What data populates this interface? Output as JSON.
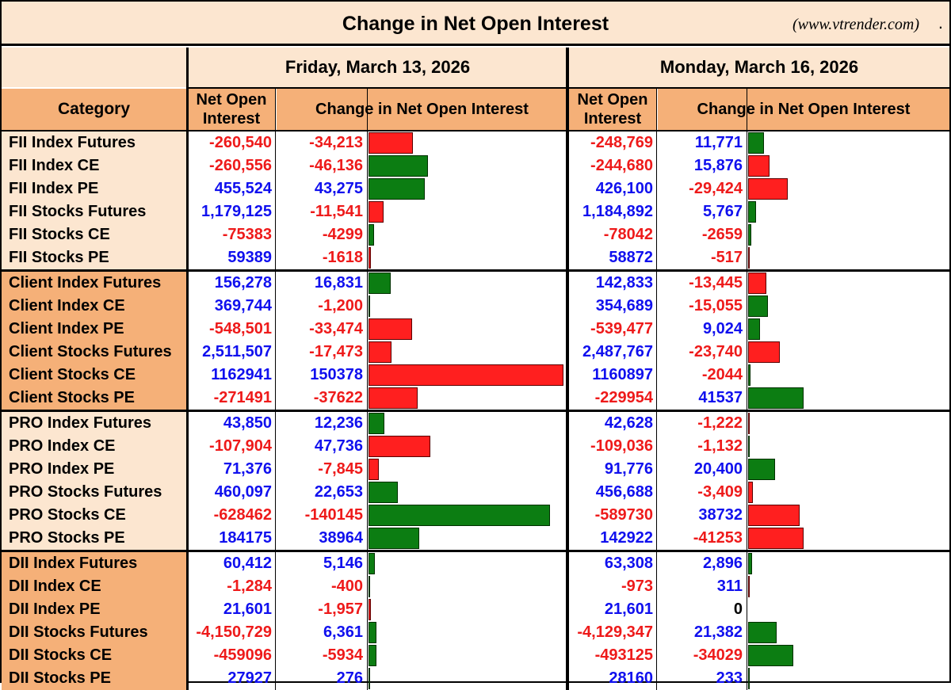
{
  "title": "Change in Net Open Interest",
  "source": "(www.vtrender.com)",
  "source_dot": ".",
  "dates": [
    "Friday, March 13, 2026",
    "Monday, March 16, 2026"
  ],
  "headers": {
    "category": "Category",
    "net_oi_line1": "Net Open",
    "net_oi_line2": "Interest",
    "change": "Change in Net Open Interest"
  },
  "colors": {
    "title_bg": "#fce6d0",
    "header_bg": "#f5b078",
    "positive_text": "#1010ee",
    "negative_text": "#ee1a1a",
    "bar_red": "#ff1f1f",
    "bar_green": "#0c7d12"
  },
  "chart_data": {
    "type": "table",
    "groups": [
      {
        "name": "FII",
        "category_bg": "#fce6d0",
        "rows": [
          {
            "category": "FII Index Futures",
            "fri_noi": "-260,540",
            "fri_chg": "-34,213",
            "mon_noi": "-248,769",
            "mon_chg": "11,771"
          },
          {
            "category": "FII Index CE",
            "fri_noi": "-260,556",
            "fri_chg": "-46,136",
            "mon_noi": "-244,680",
            "mon_chg": "15,876"
          },
          {
            "category": "FII Index PE",
            "fri_noi": "455,524",
            "fri_chg": "43,275",
            "mon_noi": "426,100",
            "mon_chg": "-29,424"
          },
          {
            "category": "FII Stocks Futures",
            "fri_noi": "1,179,125",
            "fri_chg": "-11,541",
            "mon_noi": "1,184,892",
            "mon_chg": "5,767"
          },
          {
            "category": "FII Stocks CE",
            "fri_noi": "-75383",
            "fri_chg": "-4299",
            "mon_noi": "-78042",
            "mon_chg": "-2659"
          },
          {
            "category": "FII Stocks PE",
            "fri_noi": "59389",
            "fri_chg": "-1618",
            "mon_noi": "58872",
            "mon_chg": "-517"
          }
        ]
      },
      {
        "name": "Client",
        "category_bg": "#f5b078",
        "rows": [
          {
            "category": "Client Index Futures",
            "fri_noi": "156,278",
            "fri_chg": "16,831",
            "mon_noi": "142,833",
            "mon_chg": "-13,445"
          },
          {
            "category": "Client Index CE",
            "fri_noi": "369,744",
            "fri_chg": "-1,200",
            "mon_noi": "354,689",
            "mon_chg": "-15,055"
          },
          {
            "category": "Client Index PE",
            "fri_noi": "-548,501",
            "fri_chg": "-33,474",
            "mon_noi": "-539,477",
            "mon_chg": "9,024"
          },
          {
            "category": "Client Stocks Futures",
            "fri_noi": "2,511,507",
            "fri_chg": "-17,473",
            "mon_noi": "2,487,767",
            "mon_chg": "-23,740"
          },
          {
            "category": "Client Stocks CE",
            "fri_noi": "1162941",
            "fri_chg": "150378",
            "mon_noi": "1160897",
            "mon_chg": "-2044"
          },
          {
            "category": "Client Stocks PE",
            "fri_noi": "-271491",
            "fri_chg": "-37622",
            "mon_noi": "-229954",
            "mon_chg": "41537"
          }
        ]
      },
      {
        "name": "PRO",
        "category_bg": "#fce6d0",
        "rows": [
          {
            "category": "PRO Index Futures",
            "fri_noi": "43,850",
            "fri_chg": "12,236",
            "mon_noi": "42,628",
            "mon_chg": "-1,222"
          },
          {
            "category": "PRO Index CE",
            "fri_noi": "-107,904",
            "fri_chg": "47,736",
            "mon_noi": "-109,036",
            "mon_chg": "-1,132"
          },
          {
            "category": "PRO Index PE",
            "fri_noi": "71,376",
            "fri_chg": "-7,845",
            "mon_noi": "91,776",
            "mon_chg": "20,400"
          },
          {
            "category": "PRO Stocks Futures",
            "fri_noi": "460,097",
            "fri_chg": "22,653",
            "mon_noi": "456,688",
            "mon_chg": "-3,409"
          },
          {
            "category": "PRO Stocks CE",
            "fri_noi": "-628462",
            "fri_chg": "-140145",
            "mon_noi": "-589730",
            "mon_chg": "38732"
          },
          {
            "category": "PRO Stocks PE",
            "fri_noi": "184175",
            "fri_chg": "38964",
            "mon_noi": "142922",
            "mon_chg": "-41253"
          }
        ]
      },
      {
        "name": "DII",
        "category_bg": "#f5b078",
        "rows": [
          {
            "category": "DII Index Futures",
            "fri_noi": "60,412",
            "fri_chg": "5,146",
            "mon_noi": "63,308",
            "mon_chg": "2,896"
          },
          {
            "category": "DII Index CE",
            "fri_noi": "-1,284",
            "fri_chg": "-400",
            "mon_noi": "-973",
            "mon_chg": "311"
          },
          {
            "category": "DII Index PE",
            "fri_noi": "21,601",
            "fri_chg": "-1,957",
            "mon_noi": "21,601",
            "mon_chg": "0"
          },
          {
            "category": "DII Stocks Futures",
            "fri_noi": "-4,150,729",
            "fri_chg": "6,361",
            "mon_noi": "-4,129,347",
            "mon_chg": "21,382"
          },
          {
            "category": "DII Stocks CE",
            "fri_noi": "-459096",
            "fri_chg": "-5934",
            "mon_noi": "-493125",
            "mon_chg": "-34029"
          },
          {
            "category": "DII Stocks PE",
            "fri_noi": "27927",
            "fri_chg": "276",
            "mon_noi": "28160",
            "mon_chg": "233"
          }
        ]
      }
    ],
    "bars": {
      "fri_max": 150378,
      "mon_max": 41537,
      "rule": "bar length proportional to |change| within each day; color: Index/Stocks Futures & PE green when change >= 0, CE green when change < 0 (bullish=green), otherwise red"
    }
  }
}
